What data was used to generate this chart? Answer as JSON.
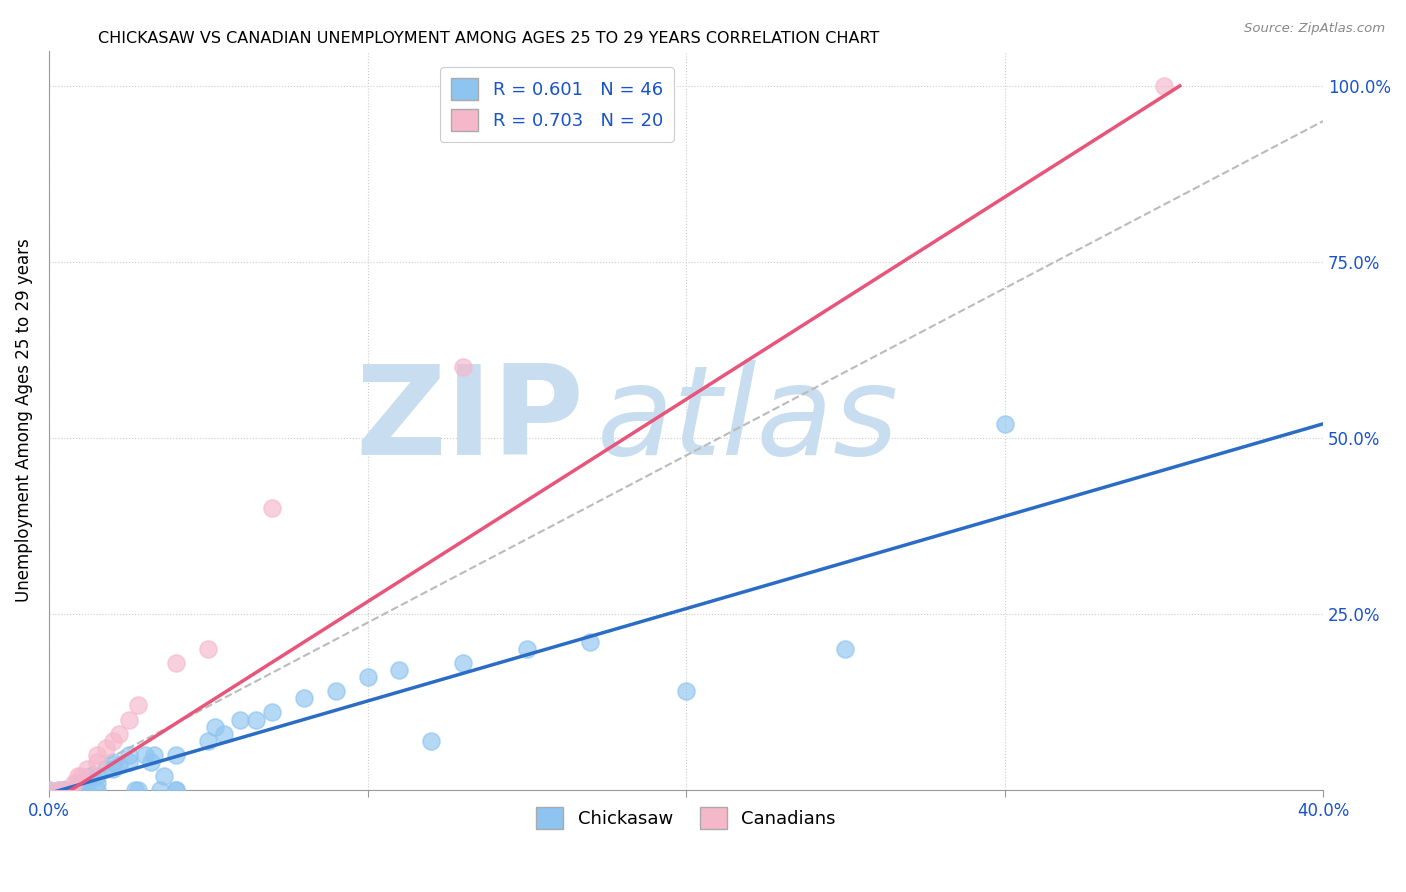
{
  "title": "CHICKASAW VS CANADIAN UNEMPLOYMENT AMONG AGES 25 TO 29 YEARS CORRELATION CHART",
  "source": "Source: ZipAtlas.com",
  "ylabel": "Unemployment Among Ages 25 to 29 years",
  "xlim": [
    0.0,
    0.4
  ],
  "ylim": [
    0.0,
    1.05
  ],
  "yticks": [
    0.0,
    0.25,
    0.5,
    0.75,
    1.0
  ],
  "ytick_labels": [
    "",
    "25.0%",
    "50.0%",
    "75.0%",
    "100.0%"
  ],
  "xticks": [
    0.0,
    0.1,
    0.2,
    0.3,
    0.4
  ],
  "xtick_labels": [
    "0.0%",
    "",
    "",
    "",
    "40.0%"
  ],
  "chickasaw_color": "#8EC4F0",
  "canadian_color": "#F5B8CB",
  "chickasaw_line_color": "#2B6CC4",
  "canadian_line_color": "#E8547A",
  "diagonal_color": "#BBBBBB",
  "watermark_zip": "ZIP",
  "watermark_atlas": "atlas",
  "watermark_color": "#C8DDEF",
  "chickasaw_scatter": [
    [
      0.0,
      0.0
    ],
    [
      0.003,
      0.0
    ],
    [
      0.005,
      0.0
    ],
    [
      0.007,
      0.0
    ],
    [
      0.008,
      0.0
    ],
    [
      0.009,
      0.0
    ],
    [
      0.01,
      0.0
    ],
    [
      0.01,
      0.01
    ],
    [
      0.012,
      0.0
    ],
    [
      0.013,
      0.02
    ],
    [
      0.015,
      0.0
    ],
    [
      0.015,
      0.01
    ],
    [
      0.015,
      0.02
    ],
    [
      0.018,
      0.03
    ],
    [
      0.02,
      0.03
    ],
    [
      0.02,
      0.04
    ],
    [
      0.022,
      0.035
    ],
    [
      0.025,
      0.04
    ],
    [
      0.025,
      0.05
    ],
    [
      0.027,
      0.0
    ],
    [
      0.028,
      0.0
    ],
    [
      0.03,
      0.05
    ],
    [
      0.032,
      0.04
    ],
    [
      0.033,
      0.05
    ],
    [
      0.035,
      0.0
    ],
    [
      0.036,
      0.02
    ],
    [
      0.04,
      0.0
    ],
    [
      0.04,
      0.0
    ],
    [
      0.04,
      0.05
    ],
    [
      0.05,
      0.07
    ],
    [
      0.052,
      0.09
    ],
    [
      0.055,
      0.08
    ],
    [
      0.06,
      0.1
    ],
    [
      0.065,
      0.1
    ],
    [
      0.07,
      0.11
    ],
    [
      0.08,
      0.13
    ],
    [
      0.09,
      0.14
    ],
    [
      0.1,
      0.16
    ],
    [
      0.11,
      0.17
    ],
    [
      0.12,
      0.07
    ],
    [
      0.13,
      0.18
    ],
    [
      0.15,
      0.2
    ],
    [
      0.17,
      0.21
    ],
    [
      0.2,
      0.14
    ],
    [
      0.25,
      0.2
    ],
    [
      0.3,
      0.52
    ]
  ],
  "canadian_scatter": [
    [
      0.0,
      0.0
    ],
    [
      0.003,
      0.0
    ],
    [
      0.005,
      0.0
    ],
    [
      0.007,
      0.0
    ],
    [
      0.008,
      0.01
    ],
    [
      0.009,
      0.02
    ],
    [
      0.01,
      0.02
    ],
    [
      0.012,
      0.03
    ],
    [
      0.015,
      0.04
    ],
    [
      0.015,
      0.05
    ],
    [
      0.018,
      0.06
    ],
    [
      0.02,
      0.07
    ],
    [
      0.022,
      0.08
    ],
    [
      0.025,
      0.1
    ],
    [
      0.028,
      0.12
    ],
    [
      0.04,
      0.18
    ],
    [
      0.05,
      0.2
    ],
    [
      0.07,
      0.4
    ],
    [
      0.13,
      0.6
    ],
    [
      0.35,
      1.0
    ]
  ],
  "chickasaw_line": [
    [
      0.0,
      -0.005
    ],
    [
      0.4,
      0.52
    ]
  ],
  "canadian_line": [
    [
      0.0,
      -0.02
    ],
    [
      0.355,
      1.0
    ]
  ],
  "diagonal_line": [
    [
      0.0,
      0.0
    ],
    [
      0.4,
      0.95
    ]
  ]
}
